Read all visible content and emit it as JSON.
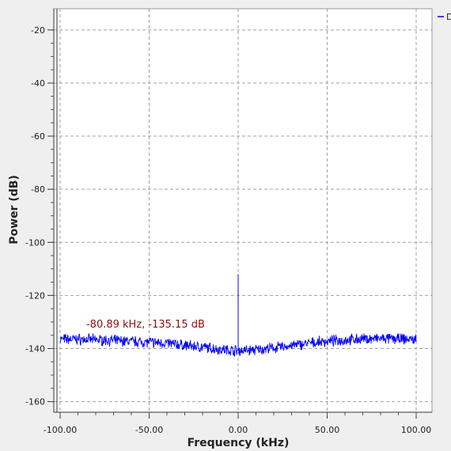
{
  "chart_data": {
    "type": "line",
    "xlabel": "Frequency (kHz)",
    "ylabel": "Power (dB)",
    "xlim": [
      -100,
      100
    ],
    "ylim": [
      -164,
      -12
    ],
    "x_ticks": [
      -100,
      -50,
      0,
      50,
      100
    ],
    "x_tick_labels": [
      "-100.00",
      "-50.00",
      "0.00",
      "50.00",
      "100.00"
    ],
    "y_ticks": [
      -20,
      -40,
      -60,
      -80,
      -100,
      -120,
      -140,
      -160
    ],
    "y_tick_labels": [
      "-20",
      "-40",
      "-60",
      "-80",
      "-100",
      "-120",
      "-140",
      "-160"
    ],
    "grid": true,
    "legend_position": "top-right",
    "series": [
      {
        "name": "D",
        "color": "#0000ff",
        "x": [
          -100,
          -90,
          -80,
          -70,
          -60,
          -50,
          -40,
          -30,
          -20,
          -10,
          0,
          10,
          20,
          30,
          40,
          50,
          60,
          70,
          80,
          90,
          100
        ],
        "y": [
          -136.5,
          -136.5,
          -136.7,
          -137.0,
          -137.3,
          -137.6,
          -138.0,
          -138.8,
          -139.5,
          -140.3,
          -140.8,
          -140.5,
          -139.8,
          -138.9,
          -138.0,
          -137.3,
          -136.8,
          -136.4,
          -136.3,
          -136.4,
          -136.6
        ],
        "peak": {
          "x": 0,
          "y": -112
        }
      }
    ],
    "annotation": {
      "text": "-80.89 kHz, -135.15 dB",
      "x": -80.89,
      "y": -135.15,
      "color": "#8b1010"
    }
  }
}
